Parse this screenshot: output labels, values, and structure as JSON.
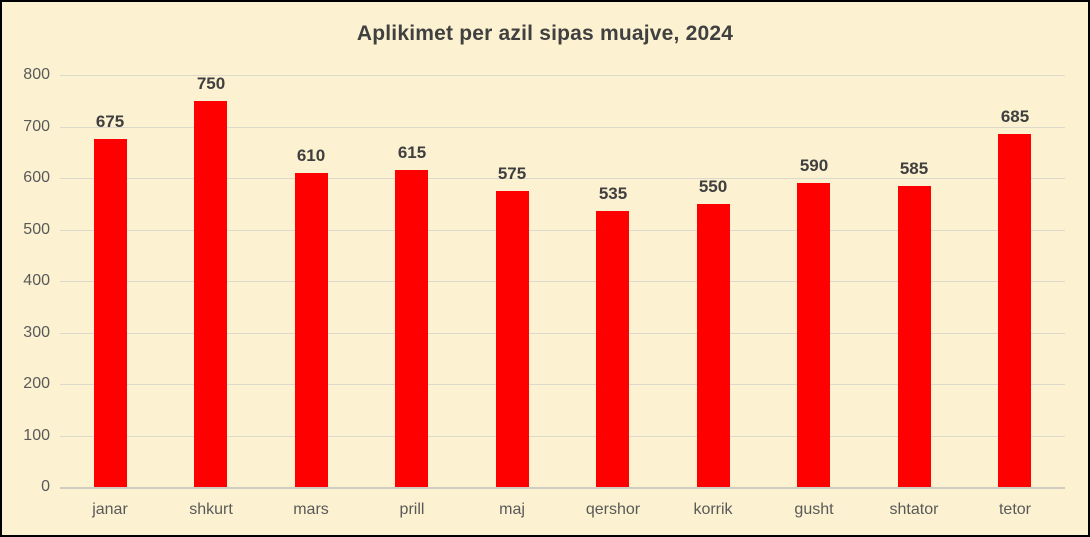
{
  "chart_data": {
    "type": "bar",
    "title": "Aplikimet per azil sipas muajve, 2024",
    "categories": [
      "janar",
      "shkurt",
      "mars",
      "prill",
      "maj",
      "qershor",
      "korrik",
      "gusht",
      "shtator",
      "tetor"
    ],
    "values": [
      675,
      750,
      610,
      615,
      575,
      535,
      550,
      590,
      585,
      685
    ],
    "xlabel": "",
    "ylabel": "",
    "ylim": [
      0,
      800
    ],
    "ytick_interval": 100,
    "yticks": [
      0,
      100,
      200,
      300,
      400,
      500,
      600,
      700,
      800
    ],
    "grid": true,
    "legend": "none",
    "data_labels": true,
    "colors": {
      "bar": "#fe0000",
      "background": "#fcf2d1",
      "title_text": "#404040",
      "value_label_text": "#3f3f3f",
      "axis_label_text": "#595959",
      "gridline": "#ddd8cc",
      "axis_line": "#cfccc2",
      "frame_border": "#000000"
    }
  }
}
